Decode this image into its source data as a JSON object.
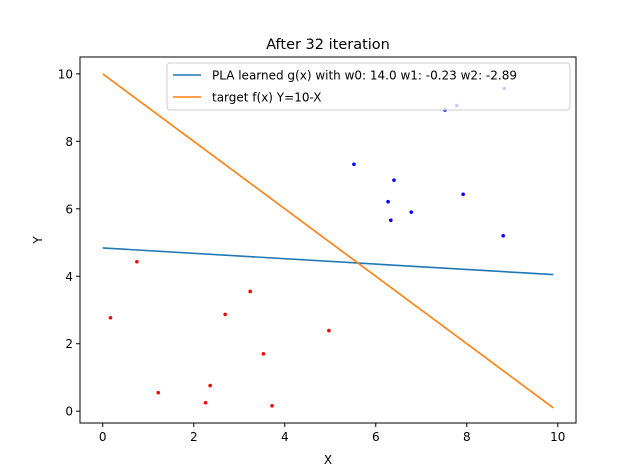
{
  "chart_data": {
    "type": "scatter",
    "title": "After 32 iteration",
    "xlabel": "X",
    "ylabel": "Y",
    "xlim": [
      -0.5,
      10.4
    ],
    "ylim": [
      -0.35,
      10.5
    ],
    "xticks": [
      0,
      2,
      4,
      6,
      8,
      10
    ],
    "yticks": [
      0,
      2,
      4,
      6,
      8,
      10
    ],
    "grid": false,
    "legend_position": "top-right",
    "lines": [
      {
        "name": "PLA learned g(x) with w0: 14.0 w1: -0.23 w2: -2.89",
        "color": "#1f77b4",
        "x": [
          0,
          9.9
        ],
        "y": [
          4.84,
          4.05
        ]
      },
      {
        "name": "target f(x) Y=10-X",
        "color": "#ff7f0e",
        "x": [
          0,
          9.9
        ],
        "y": [
          10,
          0.1
        ]
      }
    ],
    "scatter": [
      {
        "color": "#0000ff",
        "points": [
          [
            5.52,
            7.32
          ],
          [
            6.4,
            6.85
          ],
          [
            6.27,
            6.21
          ],
          [
            7.92,
            6.43
          ],
          [
            6.78,
            5.9
          ],
          [
            6.33,
            5.66
          ],
          [
            8.8,
            5.2
          ],
          [
            7.52,
            8.93
          ],
          [
            7.78,
            9.06
          ],
          [
            8.83,
            9.57
          ]
        ]
      },
      {
        "color": "#ff0000",
        "points": [
          [
            0.75,
            4.43
          ],
          [
            0.17,
            2.77
          ],
          [
            3.24,
            3.55
          ],
          [
            2.69,
            2.87
          ],
          [
            4.97,
            2.39
          ],
          [
            3.53,
            1.7
          ],
          [
            1.22,
            0.55
          ],
          [
            2.36,
            0.76
          ],
          [
            2.26,
            0.25
          ],
          [
            3.72,
            0.16
          ]
        ]
      }
    ]
  }
}
